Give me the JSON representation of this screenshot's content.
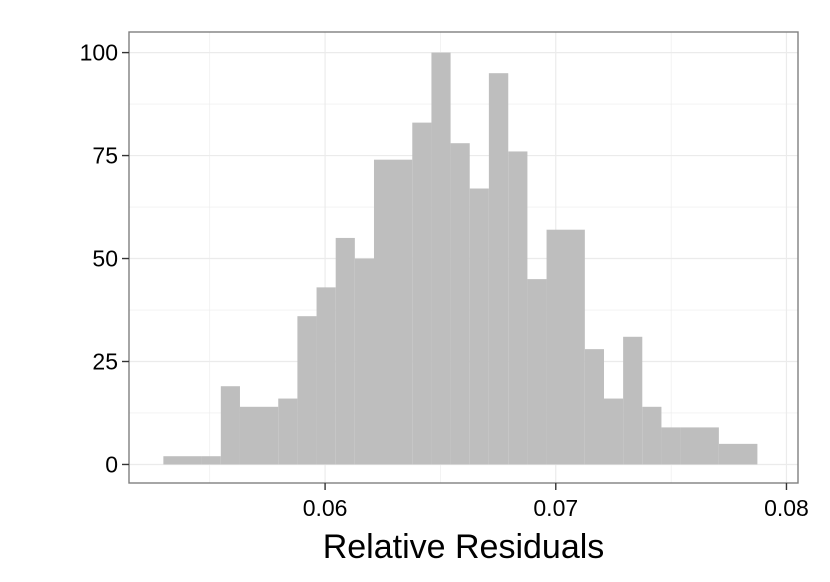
{
  "chart_data": {
    "type": "bar",
    "subtype": "histogram",
    "title": "",
    "xlabel": "Relative Residuals",
    "ylabel": "",
    "xlim": [
      0.0515,
      0.0805
    ],
    "ylim": [
      -4.5,
      105
    ],
    "x_ticks": [
      0.06,
      0.07,
      0.08
    ],
    "x_tick_labels": [
      "0.06",
      "0.07",
      "0.08"
    ],
    "y_ticks": [
      0,
      25,
      50,
      75,
      100
    ],
    "y_tick_labels": [
      "0",
      "25",
      "50",
      "75",
      "100"
    ],
    "grid": true,
    "panel_border": true,
    "bar_color": "#bebebe",
    "grid_color": "#ebebeb",
    "bins": [
      {
        "x0": 0.05299,
        "x1": 0.05464,
        "count": 2
      },
      {
        "x0": 0.05464,
        "x1": 0.05548,
        "count": 2
      },
      {
        "x0": 0.05548,
        "x1": 0.05631,
        "count": 19
      },
      {
        "x0": 0.05631,
        "x1": 0.05797,
        "count": 14
      },
      {
        "x0": 0.05797,
        "x1": 0.0588,
        "count": 16
      },
      {
        "x0": 0.0588,
        "x1": 0.05963,
        "count": 36
      },
      {
        "x0": 0.05963,
        "x1": 0.06046,
        "count": 43
      },
      {
        "x0": 0.06046,
        "x1": 0.06129,
        "count": 55
      },
      {
        "x0": 0.06129,
        "x1": 0.06212,
        "count": 50
      },
      {
        "x0": 0.06212,
        "x1": 0.06378,
        "count": 74
      },
      {
        "x0": 0.06378,
        "x1": 0.06461,
        "count": 83
      },
      {
        "x0": 0.06461,
        "x1": 0.06544,
        "count": 100
      },
      {
        "x0": 0.06544,
        "x1": 0.06627,
        "count": 78
      },
      {
        "x0": 0.06627,
        "x1": 0.0671,
        "count": 67
      },
      {
        "x0": 0.0671,
        "x1": 0.06794,
        "count": 95
      },
      {
        "x0": 0.06794,
        "x1": 0.06877,
        "count": 76
      },
      {
        "x0": 0.06877,
        "x1": 0.0696,
        "count": 45
      },
      {
        "x0": 0.0696,
        "x1": 0.07126,
        "count": 57
      },
      {
        "x0": 0.07126,
        "x1": 0.07209,
        "count": 28
      },
      {
        "x0": 0.07209,
        "x1": 0.07292,
        "count": 16
      },
      {
        "x0": 0.07292,
        "x1": 0.07375,
        "count": 31
      },
      {
        "x0": 0.07375,
        "x1": 0.07458,
        "count": 14
      },
      {
        "x0": 0.07458,
        "x1": 0.07541,
        "count": 9
      },
      {
        "x0": 0.07541,
        "x1": 0.07707,
        "count": 9
      },
      {
        "x0": 0.07707,
        "x1": 0.07874,
        "count": 5
      }
    ]
  }
}
